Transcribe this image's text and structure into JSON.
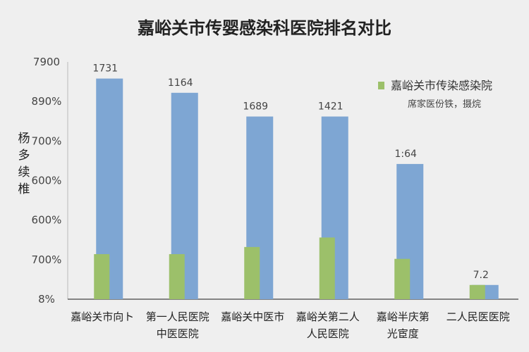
{
  "chart_data": {
    "type": "bar",
    "title": "嘉峪关市传婴感染科医院排名对比",
    "ylabel": [
      "杨",
      "多",
      "续",
      "椎"
    ],
    "ytick_labels": [
      "7900",
      "890%",
      "700%",
      "600%",
      "600%",
      "700%",
      "8%"
    ],
    "categories": [
      [
        "嘉峪关市向ト"
      ],
      [
        "第一人民医院",
        "中医医院"
      ],
      [
        "嘉峪关中医市"
      ],
      [
        "嘉峪关第二人",
        "人民医院"
      ],
      [
        "嘉峪半庆第",
        "光宦度"
      ],
      [
        "二人民医医院"
      ]
    ],
    "series": [
      {
        "name": "",
        "color": "#7ea6d3",
        "values": [
          93,
          87,
          77,
          77,
          57,
          6
        ]
      },
      {
        "name": "嘉峪关市传染感染院",
        "color": "#9cc06a",
        "values": [
          19,
          19,
          22,
          26,
          17,
          6
        ]
      }
    ],
    "data_labels": [
      "1731",
      "1164",
      "1689",
      "1421",
      "1:64",
      "7.2"
    ],
    "legend": {
      "position": "top-right",
      "subtitle": "席家医份铁，摄烷"
    },
    "ylim": [
      0,
      100
    ],
    "grid": false
  }
}
